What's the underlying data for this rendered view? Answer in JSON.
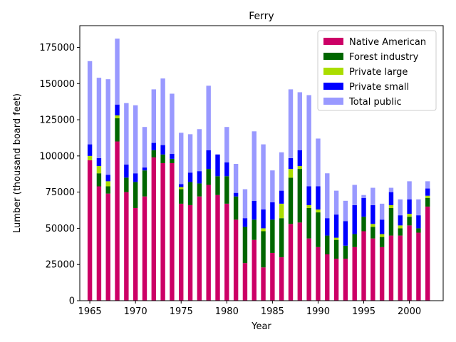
{
  "chart_data": {
    "type": "bar",
    "stacked": true,
    "title": "Ferry",
    "xlabel": "Year",
    "ylabel": "Lumber (thousand board feet)",
    "x": [
      1965,
      1966,
      1967,
      1968,
      1969,
      1970,
      1971,
      1972,
      1973,
      1974,
      1975,
      1976,
      1977,
      1978,
      1979,
      1980,
      1981,
      1982,
      1983,
      1984,
      1985,
      1986,
      1987,
      1988,
      1989,
      1990,
      1991,
      1992,
      1993,
      1994,
      1995,
      1996,
      1997,
      1998,
      1999,
      2000,
      2001,
      2002
    ],
    "xlim": [
      1963.9,
      2003.7
    ],
    "ylim": [
      0,
      190000
    ],
    "xticks": [
      1965,
      1970,
      1975,
      1980,
      1985,
      1990,
      1995,
      2000
    ],
    "xtick_labels": [
      "1965",
      "1970",
      "1975",
      "1980",
      "1985",
      "1990",
      "1995",
      "2000"
    ],
    "yticks": [
      0,
      25000,
      50000,
      75000,
      100000,
      125000,
      150000,
      175000
    ],
    "ytick_labels": [
      "0",
      "25000",
      "50000",
      "75000",
      "100000",
      "125000",
      "150000",
      "175000"
    ],
    "legend_position": "top-right",
    "series": [
      {
        "name": "Native American",
        "color": "#cc0066",
        "values": [
          97000,
          79000,
          74000,
          110000,
          75000,
          64000,
          72000,
          99000,
          95000,
          95000,
          67000,
          66000,
          72000,
          80000,
          73000,
          67000,
          56000,
          26000,
          42000,
          23000,
          33000,
          30000,
          53000,
          54000,
          43000,
          37000,
          32000,
          29000,
          29000,
          37000,
          48000,
          43000,
          37000,
          45000,
          45000,
          52000,
          47000,
          65000
        ]
      },
      {
        "name": "Forest industry",
        "color": "#006600",
        "values": [
          0,
          9000,
          5000,
          16000,
          10000,
          18000,
          18000,
          5000,
          6000,
          3000,
          10000,
          16000,
          9000,
          11000,
          13000,
          19000,
          16000,
          25000,
          14000,
          25000,
          23000,
          27000,
          32000,
          37000,
          21000,
          24000,
          13000,
          13000,
          9000,
          9000,
          10000,
          8000,
          7000,
          19000,
          5000,
          6000,
          3000,
          6000
        ]
      },
      {
        "name": "Private large",
        "color": "#aadd00",
        "values": [
          3000,
          5000,
          3500,
          2000,
          0,
          0,
          0,
          0,
          0,
          0,
          1500,
          0,
          0,
          0,
          0,
          0,
          0,
          0,
          0,
          2000,
          0,
          10000,
          6000,
          2000,
          2000,
          2000,
          0,
          1500,
          0,
          0,
          0,
          2000,
          2000,
          2000,
          2000,
          2000,
          0,
          1500
        ]
      },
      {
        "name": "Private small",
        "color": "#0000ff",
        "values": [
          8000,
          5500,
          4500,
          7500,
          9000,
          6000,
          2000,
          5000,
          6500,
          3500,
          2000,
          6500,
          8500,
          13000,
          15000,
          9500,
          2500,
          6000,
          13000,
          13000,
          12000,
          9000,
          7500,
          11000,
          13000,
          16000,
          12000,
          16000,
          17000,
          20000,
          13000,
          13000,
          10000,
          9000,
          7000,
          10000,
          9000,
          5000
        ]
      },
      {
        "name": "Total public",
        "color": "#9999ff",
        "values": [
          57500,
          55500,
          66000,
          45500,
          42500,
          47000,
          28000,
          37000,
          46000,
          41500,
          35500,
          26500,
          29000,
          44500,
          0,
          24500,
          20000,
          20000,
          48000,
          45000,
          22000,
          26500,
          47500,
          40000,
          63000,
          33000,
          31000,
          16500,
          14000,
          14000,
          2000,
          12000,
          11000,
          3000,
          11000,
          12500,
          11000,
          5000
        ]
      }
    ]
  }
}
